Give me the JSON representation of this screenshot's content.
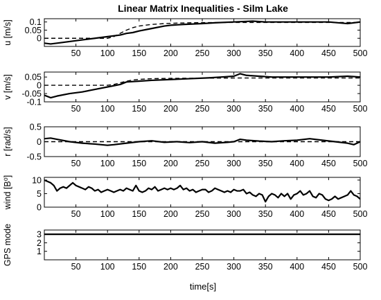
{
  "chart_data": {
    "type": "line",
    "title": "Linear Matrix Inequalities - Silm Lake",
    "xlabel": "time[s]",
    "xlim": [
      0,
      500
    ],
    "xticks": [
      50,
      100,
      150,
      200,
      250,
      300,
      350,
      400,
      450,
      500
    ],
    "panels": [
      {
        "ylabel": "u [m/s]",
        "ylim": [
          -0.05,
          0.12
        ],
        "yticks": [
          {
            "v": 0.1,
            "label": "0.1"
          },
          {
            "v": 0.05,
            "label": "0.05"
          },
          {
            "v": 0,
            "label": "0"
          }
        ],
        "series": [
          {
            "style": "solid",
            "x": [
              0,
              10,
              20,
              40,
              60,
              80,
              100,
              120,
              130,
              140,
              150,
              170,
              190,
              200,
              220,
              250,
              270,
              300,
              330,
              350,
              400,
              450,
              480,
              500
            ],
            "y": [
              -0.03,
              -0.035,
              -0.03,
              -0.02,
              -0.01,
              0.0,
              0.01,
              0.02,
              0.03,
              0.035,
              0.045,
              0.06,
              0.075,
              0.08,
              0.085,
              0.09,
              0.095,
              0.1,
              0.105,
              0.1,
              0.1,
              0.1,
              0.09,
              0.1
            ]
          },
          {
            "style": "dashed",
            "x": [
              0,
              100,
              110,
              120,
              130,
              140,
              150,
              170,
              190,
              210,
              230,
              250,
              300,
              350,
              400,
              450,
              500
            ],
            "y": [
              0.0,
              0.0,
              0.01,
              0.03,
              0.05,
              0.065,
              0.075,
              0.085,
              0.09,
              0.093,
              0.095,
              0.096,
              0.097,
              0.097,
              0.097,
              0.097,
              0.097
            ]
          }
        ]
      },
      {
        "ylabel": "v [m/s]",
        "ylim": [
          -0.1,
          0.08
        ],
        "yticks": [
          {
            "v": 0.05,
            "label": "0.05"
          },
          {
            "v": 0,
            "label": "0"
          },
          {
            "v": -0.05,
            "label": "-0.05"
          },
          {
            "v": -0.1,
            "label": "-0.1"
          }
        ],
        "series": [
          {
            "style": "solid",
            "x": [
              0,
              10,
              20,
              40,
              60,
              80,
              100,
              120,
              130,
              150,
              170,
              200,
              230,
              260,
              280,
              300,
              310,
              320,
              340,
              360,
              400,
              450,
              480,
              500
            ],
            "y": [
              -0.06,
              -0.075,
              -0.065,
              -0.05,
              -0.04,
              -0.025,
              -0.01,
              0.005,
              0.02,
              0.025,
              0.03,
              0.035,
              0.04,
              0.045,
              0.05,
              0.055,
              0.07,
              0.06,
              0.055,
              0.05,
              0.05,
              0.05,
              0.055,
              0.05
            ]
          },
          {
            "style": "dashed",
            "x": [
              0,
              100,
              110,
              120,
              130,
              140,
              150,
              170,
              200,
              250,
              300,
              350,
              400,
              450,
              500
            ],
            "y": [
              0.0,
              0.0,
              0.005,
              0.015,
              0.025,
              0.032,
              0.036,
              0.04,
              0.042,
              0.043,
              0.044,
              0.044,
              0.044,
              0.044,
              0.044
            ]
          }
        ]
      },
      {
        "ylabel": "r [rad/s]",
        "ylim": [
          -0.5,
          0.5
        ],
        "yticks": [
          {
            "v": 0.5,
            "label": "0.5"
          },
          {
            "v": 0,
            "label": "0"
          },
          {
            "v": -0.5,
            "label": "-0.5"
          }
        ],
        "series": [
          {
            "style": "solid",
            "x": [
              0,
              10,
              20,
              40,
              60,
              80,
              100,
              110,
              130,
              150,
              170,
              190,
              210,
              230,
              250,
              270,
              290,
              300,
              310,
              320,
              340,
              360,
              380,
              400,
              420,
              440,
              460,
              480,
              490,
              500
            ],
            "y": [
              0.1,
              0.12,
              0.08,
              0.0,
              -0.05,
              -0.08,
              -0.12,
              -0.1,
              -0.05,
              0.0,
              0.03,
              -0.02,
              0.0,
              -0.03,
              0.0,
              -0.05,
              -0.02,
              0.0,
              0.08,
              0.05,
              0.02,
              0.0,
              0.03,
              0.05,
              0.1,
              0.05,
              0.0,
              -0.05,
              -0.1,
              0.0
            ]
          },
          {
            "style": "dashed",
            "x": [
              0,
              500
            ],
            "y": [
              0.0,
              0.0
            ]
          }
        ]
      },
      {
        "ylabel": "wind [B⁰]",
        "ylim": [
          0,
          11
        ],
        "yticks": [
          {
            "v": 10,
            "label": "10"
          },
          {
            "v": 5,
            "label": "5"
          },
          {
            "v": 0,
            "label": "0"
          }
        ],
        "series": [
          {
            "style": "solid",
            "x": [
              0,
              5,
              10,
              15,
              20,
              25,
              30,
              35,
              40,
              45,
              50,
              55,
              60,
              65,
              70,
              75,
              80,
              85,
              90,
              95,
              100,
              105,
              110,
              115,
              120,
              125,
              130,
              135,
              140,
              145,
              150,
              155,
              160,
              165,
              170,
              175,
              180,
              185,
              190,
              195,
              200,
              205,
              210,
              215,
              220,
              225,
              230,
              235,
              240,
              245,
              250,
              255,
              260,
              265,
              270,
              275,
              280,
              285,
              290,
              295,
              300,
              305,
              310,
              315,
              320,
              325,
              330,
              335,
              340,
              345,
              350,
              355,
              360,
              365,
              370,
              375,
              380,
              385,
              390,
              395,
              400,
              405,
              410,
              415,
              420,
              425,
              430,
              435,
              440,
              445,
              450,
              455,
              460,
              465,
              470,
              475,
              480,
              485,
              490,
              495,
              500
            ],
            "y": [
              10,
              9.5,
              9,
              8,
              6,
              7,
              7.5,
              7,
              8,
              9,
              8,
              7.5,
              7,
              6.5,
              7.5,
              7,
              6,
              6.5,
              5.5,
              6,
              6.5,
              6,
              5.5,
              6,
              6.5,
              6,
              7,
              6.5,
              6,
              8,
              6,
              5.5,
              6,
              7,
              6.5,
              7.5,
              6,
              6.5,
              7,
              6.5,
              7,
              6.5,
              7,
              8,
              6.5,
              7,
              6,
              6.5,
              5.5,
              6,
              6.5,
              6.5,
              5.5,
              6,
              7,
              6.5,
              6,
              5.5,
              6,
              5.5,
              6.5,
              6,
              6,
              6.5,
              5,
              5.5,
              4.5,
              4,
              5,
              4.5,
              2,
              4,
              5,
              4.5,
              3.5,
              5,
              4,
              5,
              3,
              4.5,
              5,
              6,
              4.5,
              5,
              6,
              4,
              3.5,
              5,
              4.5,
              3,
              2.5,
              3,
              4,
              3,
              3.5,
              4,
              4.5,
              6,
              4.5,
              4,
              3
            ]
          }
        ]
      },
      {
        "ylabel": "GPS mode",
        "ylim": [
          0,
          3.5
        ],
        "yticks": [
          {
            "v": 3,
            "label": "3"
          },
          {
            "v": 2,
            "label": "2"
          },
          {
            "v": 1,
            "label": "1"
          }
        ],
        "series": [
          {
            "style": "solid",
            "x": [
              0,
              500
            ],
            "y": [
              3,
              3
            ]
          }
        ]
      }
    ]
  }
}
